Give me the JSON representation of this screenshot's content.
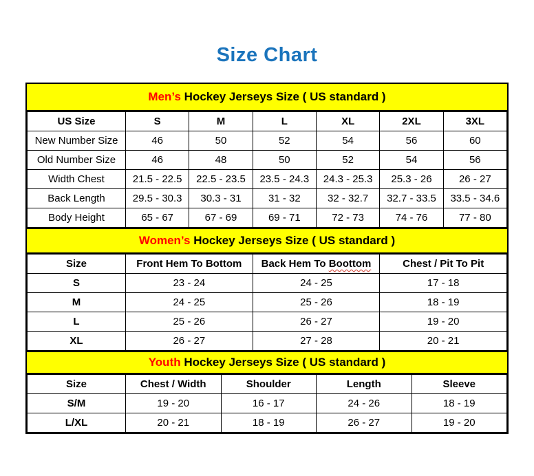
{
  "page": {
    "title": "Size Chart"
  },
  "colors": {
    "title_blue": "#1b74bc",
    "band_yellow": "#ffff00",
    "accent_red": "#ff0000",
    "border_black": "#000000"
  },
  "mens": {
    "band": {
      "highlight": "Men’s",
      "rest": " Hockey Jerseys Size ( US standard )"
    },
    "header": [
      "US Size",
      "S",
      "M",
      "L",
      "XL",
      "2XL",
      "3XL"
    ],
    "rows": [
      {
        "label": "New Number Size",
        "values": [
          "46",
          "50",
          "52",
          "54",
          "56",
          "60"
        ]
      },
      {
        "label": "Old Number Size",
        "values": [
          "46",
          "48",
          "50",
          "52",
          "54",
          "56"
        ]
      },
      {
        "label": "Width Chest",
        "values": [
          "21.5 - 22.5",
          "22.5 - 23.5",
          "23.5 - 24.3",
          "24.3 - 25.3",
          "25.3 - 26",
          "26 - 27"
        ]
      },
      {
        "label": "Back Length",
        "values": [
          "29.5 - 30.3",
          "30.3 - 31",
          "31 - 32",
          "32 - 32.7",
          "32.7 - 33.5",
          "33.5 - 34.6"
        ]
      },
      {
        "label": "Body Height",
        "values": [
          "65 - 67",
          "67 - 69",
          "69 - 71",
          "72 - 73",
          "74 - 76",
          "77 - 80"
        ]
      }
    ]
  },
  "womens": {
    "band": {
      "highlight": "Women’s",
      "rest": " Hockey Jerseys Size ( US standard )"
    },
    "header": {
      "size": "Size",
      "front_hem": "Front Hem To Bottom",
      "back_hem_prefix": "Back Hem To ",
      "back_hem_misspelled": "Boottom",
      "chest": "Chest / Pit To Pit"
    },
    "rows": [
      {
        "label": "S",
        "values": [
          "23 - 24",
          "24 - 25",
          "17 - 18"
        ]
      },
      {
        "label": "M",
        "values": [
          "24 - 25",
          "25 - 26",
          "18 - 19"
        ]
      },
      {
        "label": "L",
        "values": [
          "25 - 26",
          "26 - 27",
          "19 - 20"
        ]
      },
      {
        "label": "XL",
        "values": [
          "26 - 27",
          "27 - 28",
          "20 - 21"
        ]
      }
    ]
  },
  "youth": {
    "band": {
      "highlight": "Youth",
      "rest": " Hockey Jerseys Size ( US standard )"
    },
    "header": [
      "Size",
      "Chest / Width",
      "Shoulder",
      "Length",
      "Sleeve"
    ],
    "rows": [
      {
        "label": "S/M",
        "values": [
          "19 - 20",
          "16 - 17",
          "24 - 26",
          "18 - 19"
        ]
      },
      {
        "label": "L/XL",
        "values": [
          "20 - 21",
          "18 - 19",
          "26 - 27",
          "19 - 20"
        ]
      }
    ]
  }
}
